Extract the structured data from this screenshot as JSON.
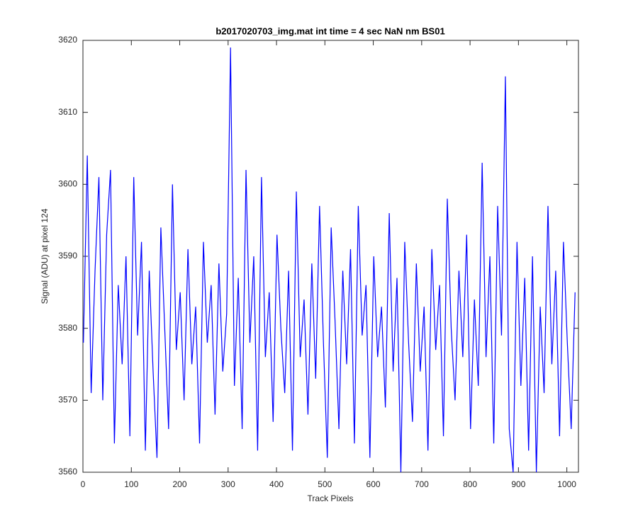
{
  "chart_data": {
    "type": "line",
    "title": "b2017020703_img.mat int time = 4 sec  NaN nm BS01",
    "xlabel": "Track Pixels",
    "ylabel": "Signal (ADU) at pixel 124",
    "xlim": [
      0,
      1024
    ],
    "ylim": [
      3560,
      3620
    ],
    "xticks": [
      0,
      100,
      200,
      300,
      400,
      500,
      600,
      700,
      800,
      900,
      1000
    ],
    "yticks": [
      3560,
      3570,
      3580,
      3590,
      3600,
      3610,
      3620
    ],
    "x": [
      1,
      9,
      17,
      25,
      33,
      41,
      49,
      57,
      65,
      73,
      81,
      89,
      97,
      105,
      113,
      121,
      129,
      137,
      145,
      153,
      161,
      169,
      177,
      185,
      193,
      201,
      209,
      217,
      225,
      233,
      241,
      249,
      257,
      265,
      273,
      281,
      289,
      297,
      305,
      313,
      321,
      329,
      337,
      345,
      353,
      361,
      369,
      377,
      385,
      393,
      401,
      409,
      417,
      425,
      433,
      441,
      449,
      457,
      465,
      473,
      481,
      489,
      497,
      505,
      513,
      521,
      529,
      537,
      545,
      553,
      561,
      569,
      577,
      585,
      593,
      601,
      609,
      617,
      625,
      633,
      641,
      649,
      657,
      665,
      673,
      681,
      689,
      697,
      705,
      713,
      721,
      729,
      737,
      745,
      753,
      761,
      769,
      777,
      785,
      793,
      801,
      809,
      817,
      825,
      833,
      841,
      849,
      857,
      865,
      873,
      881,
      889,
      897,
      905,
      913,
      921,
      929,
      937,
      945,
      953,
      961,
      969,
      977,
      985,
      993,
      1001,
      1009,
      1017
    ],
    "series": [
      {
        "color": "#0000ff",
        "values": [
          3578,
          3604,
          3571,
          3588,
          3601,
          3570,
          3593,
          3602,
          3564,
          3586,
          3575,
          3590,
          3565,
          3601,
          3579,
          3592,
          3563,
          3588,
          3574,
          3562,
          3594,
          3580,
          3566,
          3600,
          3577,
          3585,
          3570,
          3591,
          3575,
          3583,
          3564,
          3592,
          3578,
          3586,
          3568,
          3589,
          3574,
          3582,
          3619,
          3572,
          3587,
          3566,
          3602,
          3578,
          3590,
          3563,
          3601,
          3576,
          3585,
          3567,
          3593,
          3580,
          3571,
          3588,
          3563,
          3599,
          3576,
          3584,
          3568,
          3589,
          3573,
          3597,
          3578,
          3562,
          3594,
          3581,
          3566,
          3588,
          3575,
          3591,
          3564,
          3597,
          3579,
          3586,
          3562,
          3590,
          3576,
          3583,
          3569,
          3596,
          3574,
          3587,
          3560,
          3592,
          3578,
          3567,
          3589,
          3574,
          3583,
          3563,
          3591,
          3577,
          3586,
          3565,
          3598,
          3580,
          3570,
          3588,
          3576,
          3593,
          3566,
          3584,
          3572,
          3603,
          3576,
          3590,
          3564,
          3597,
          3579,
          3615,
          3566,
          3560,
          3592,
          3572,
          3587,
          3563,
          3590,
          3560,
          3583,
          3571,
          3597,
          3575,
          3588,
          3565,
          3592,
          3578,
          3566,
          3585
        ]
      }
    ]
  }
}
